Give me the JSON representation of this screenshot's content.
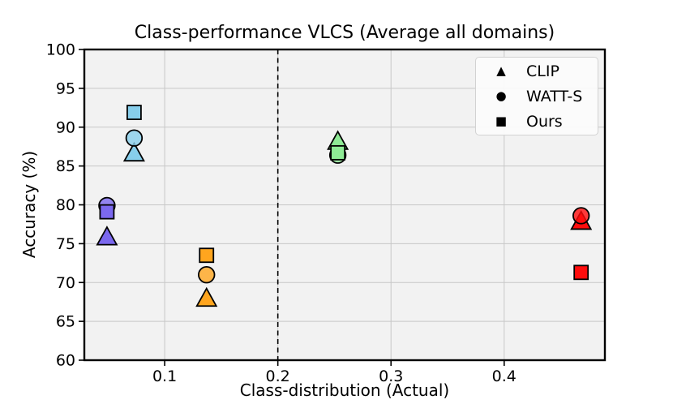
{
  "figure": {
    "title": "Class-performance VLCS (Average all domains)",
    "xlabel": "Class-distribution (Actual)",
    "ylabel": "Accuracy (%)"
  },
  "chart_data": {
    "type": "scatter",
    "title": "Class-performance VLCS (Average all domains)",
    "xlabel": "Class-distribution (Actual)",
    "ylabel": "Accuracy (%)",
    "xlim": [
      0.029,
      0.489
    ],
    "ylim": [
      60,
      100
    ],
    "x_ticks": [
      0.1,
      0.2,
      0.3,
      0.4
    ],
    "x_tick_labels": [
      "0.1",
      "0.2",
      "0.3",
      "0.4"
    ],
    "y_ticks": [
      60,
      65,
      70,
      75,
      80,
      85,
      90,
      95,
      100
    ],
    "y_tick_labels": [
      "60",
      "65",
      "70",
      "75",
      "80",
      "85",
      "90",
      "95",
      "100"
    ],
    "grid": true,
    "plot_bg_color": "#f2f2f2",
    "grid_color": "#c7c7c7",
    "vline": {
      "x": 0.2,
      "style": "dashed",
      "color": "#000000"
    },
    "classes": [
      {
        "id": "class-1",
        "color": "#7B68EE",
        "x": 0.049
      },
      {
        "id": "class-2",
        "color": "#87CEEB",
        "x": 0.073
      },
      {
        "id": "class-3",
        "color": "#FFA51E",
        "x": 0.137
      },
      {
        "id": "class-4",
        "color": "#8FEB96",
        "x": 0.253
      },
      {
        "id": "class-5",
        "color": "#FF0D0D",
        "x": 0.468
      }
    ],
    "series": [
      {
        "name": "CLIP",
        "marker": "triangle",
        "values": [
          76.0,
          86.8,
          68.1,
          88.3,
          78.0
        ]
      },
      {
        "name": "WATT-S",
        "marker": "circle",
        "values": [
          79.9,
          88.6,
          71.0,
          86.4,
          78.6
        ]
      },
      {
        "name": "Ours",
        "marker": "square",
        "values": [
          79.1,
          91.9,
          73.5,
          86.7,
          71.3
        ]
      }
    ],
    "legend": {
      "position": "upper right",
      "entries": [
        {
          "marker": "triangle",
          "label": "CLIP"
        },
        {
          "marker": "circle",
          "label": "WATT-S"
        },
        {
          "marker": "square",
          "label": "Ours"
        }
      ]
    }
  }
}
